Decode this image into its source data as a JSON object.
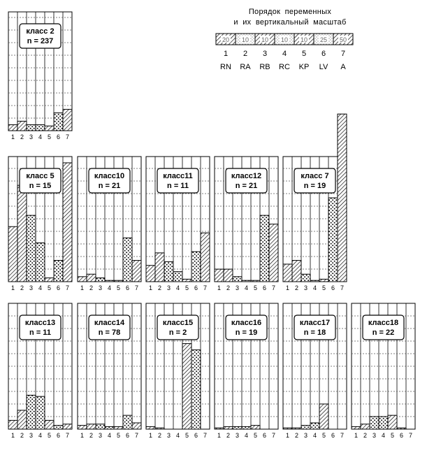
{
  "legend": {
    "title_line1": "Порядок   переменных",
    "title_line2": "и  их  вертикальный  масштаб",
    "scales": [
      "20",
      "10",
      "10",
      "10",
      "10",
      "25",
      "50"
    ],
    "numbers": [
      "1",
      "2",
      "3",
      "4",
      "5",
      "6",
      "7"
    ],
    "codes": [
      "RN",
      "RA",
      "RB",
      "RC",
      "KP",
      "LV",
      "A"
    ]
  },
  "colors": {
    "ink": "#000000",
    "grid": "#555555",
    "background": "#ffffff"
  },
  "chart_data": {
    "type": "bar",
    "categories": [
      "1",
      "2",
      "3",
      "4",
      "5",
      "6",
      "7"
    ],
    "variable_codes": [
      "RN",
      "RA",
      "RB",
      "RC",
      "KP",
      "LV",
      "A"
    ],
    "variable_scales": [
      20,
      10,
      10,
      10,
      10,
      25,
      50
    ],
    "value_units": "fraction of variable scale",
    "grid": true,
    "panels": [
      {
        "label": "класс 2",
        "n_text": "n = 237",
        "values": [
          0.05,
          0.08,
          0.05,
          0.05,
          0.04,
          0.15,
          0.18
        ]
      },
      {
        "label": "класс 5",
        "n_text": "n  =  15",
        "values": [
          0.44,
          0.77,
          0.53,
          0.31,
          0.03,
          0.17,
          0.95
        ]
      },
      {
        "label": "класс10",
        "n_text": "n  =  21",
        "values": [
          0.04,
          0.06,
          0.03,
          0.01,
          0.01,
          0.35,
          0.17
        ]
      },
      {
        "label": "класс11",
        "n_text": "n  =  11",
        "values": [
          0.13,
          0.23,
          0.16,
          0.08,
          0.02,
          0.24,
          0.39
        ]
      },
      {
        "label": "класс12",
        "n_text": "n  =  21",
        "values": [
          0.1,
          0.1,
          0.04,
          0.01,
          0.01,
          0.53,
          0.46
        ]
      },
      {
        "label": "класс 7",
        "n_text": "n  =  19",
        "values": [
          0.14,
          0.17,
          0.06,
          0.01,
          0.02,
          0.67,
          1.34
        ]
      },
      {
        "label": "класс13",
        "n_text": "n  =  11",
        "values": [
          0.07,
          0.15,
          0.27,
          0.26,
          0.07,
          0.03,
          0.04
        ]
      },
      {
        "label": "класс14",
        "n_text": "n  =  78",
        "values": [
          0.03,
          0.04,
          0.04,
          0.02,
          0.02,
          0.11,
          0.05
        ]
      },
      {
        "label": "класс15",
        "n_text": "n  =   2",
        "values": [
          0.02,
          0.01,
          0.0,
          0.0,
          0.68,
          0.63,
          0.0
        ]
      },
      {
        "label": "класс16",
        "n_text": "n  =  19",
        "values": [
          0.01,
          0.02,
          0.02,
          0.02,
          0.03,
          0.0,
          0.0
        ]
      },
      {
        "label": "класс17",
        "n_text": "n  =  18",
        "values": [
          0.01,
          0.01,
          0.03,
          0.05,
          0.2,
          0.0,
          0.0
        ]
      },
      {
        "label": "класс18",
        "n_text": "n  =  22",
        "values": [
          0.02,
          0.04,
          0.1,
          0.1,
          0.11,
          0.01,
          0.0
        ]
      }
    ]
  }
}
